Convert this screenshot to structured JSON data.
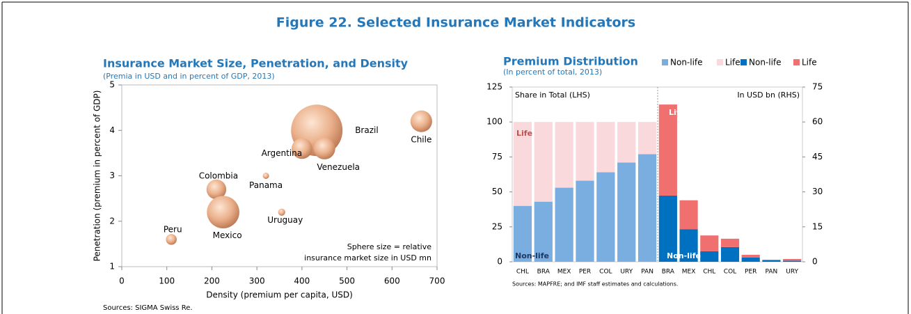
{
  "title": "Figure 22. Selected Insurance Market Indicators",
  "chart_data": [
    {
      "type": "bubble",
      "title": "Insurance Market Size, Penetration, and Density",
      "subtitle": "(Premia in USD and in percent of GDP, 2013)",
      "x_label": "Density (premium per capita, USD)",
      "y_label": "Penetration (premium in percent of GDP)",
      "labels": [
        "Brazil",
        "Chile",
        "Argentina",
        "Venezuela",
        "Panama",
        "Colombia",
        "Mexico",
        "Uruguay",
        "Peru"
      ],
      "x": [
        433,
        665,
        400,
        450,
        320,
        210,
        225,
        355,
        110
      ],
      "values": [
        4.0,
        4.2,
        3.6,
        3.6,
        3.0,
        2.7,
        2.2,
        2.2,
        1.6
      ],
      "sizes": [
        68000,
        12000,
        11000,
        12000,
        1000,
        10000,
        27000,
        1300,
        3000
      ],
      "color": "#e8a77e",
      "xlim": [
        0,
        700
      ],
      "xticks": [
        0,
        100,
        200,
        300,
        400,
        500,
        600,
        700
      ],
      "ylim": [
        1,
        5
      ],
      "yticks": [
        1,
        2,
        3,
        4,
        5
      ],
      "annotations": [
        "Sphere size = relative",
        "insurance market size in USD mn"
      ],
      "source": "Sources: SIGMA Swiss Re."
    },
    {
      "type": "stacked-bar",
      "title": "Premium Distribution",
      "subtitle": "(In percent of total, 2013)",
      "categories": [
        "CHL",
        "BRA",
        "MEX",
        "PER",
        "COL",
        "URY",
        "PAN"
      ],
      "series": [
        {
          "name": "Non-life",
          "color": "#7aaee0",
          "values": [
            40,
            43,
            53,
            58,
            64,
            71,
            77
          ]
        },
        {
          "name": "Life",
          "color": "#f9d9dc",
          "values": [
            60,
            57,
            47,
            42,
            36,
            29,
            23
          ]
        },
        {
          "name": "Non-life",
          "color": "#0070c0",
          "axis": "y2",
          "categories": [
            "BRA",
            "MEX",
            "CHL",
            "COL",
            "PER",
            "PAN",
            "URY"
          ],
          "values": [
            28.4,
            14,
            4.5,
            6.3,
            1.8,
            0.7,
            0.5
          ]
        },
        {
          "name": "Life",
          "color": "#f07070",
          "axis": "y2",
          "categories": [
            "BRA",
            "MEX",
            "CHL",
            "COL",
            "PER",
            "PAN",
            "URY"
          ],
          "values": [
            39.1,
            12.4,
            6.8,
            3.6,
            1.2,
            0.2,
            0.7
          ]
        }
      ],
      "ylim": [
        0,
        125
      ],
      "yticks": [
        0,
        25,
        50,
        75,
        100,
        125
      ],
      "y2lim": [
        0,
        75
      ],
      "y2ticks": [
        0,
        15,
        30,
        45,
        60,
        75
      ],
      "annotations": [
        "Share in Total (LHS)",
        "In USD bn (RHS)",
        "Life",
        "Non-life",
        "Life",
        "Non-life"
      ],
      "source": "Sources: MAPFRE; and IMF staff estimates and calculations."
    }
  ]
}
